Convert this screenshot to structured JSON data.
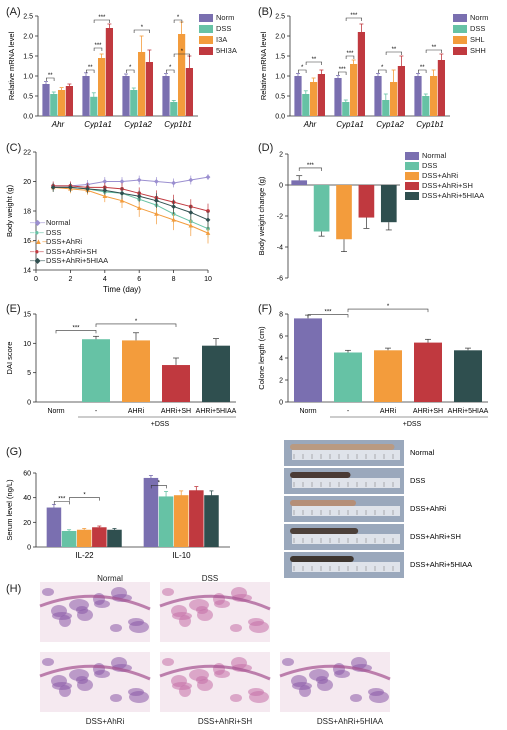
{
  "colors": {
    "norm": "#7a6fb0",
    "dss": "#66c2a5",
    "i3a": "#f39c3c",
    "h5": "#c0393f",
    "dark": "#2f4f4f"
  },
  "panel_labels": {
    "A": "(A)",
    "B": "(B)",
    "C": "(C)",
    "D": "(D)",
    "E": "(E)",
    "F": "(F)",
    "G": "(G)",
    "H": "(H)"
  },
  "chart_data": [
    {
      "id": "A",
      "type": "bar",
      "ylabel": "Relative mRNA level",
      "ylim": [
        0,
        2.5
      ],
      "yticks": [
        "0.0",
        "0.5",
        "1.0",
        "1.5",
        "2.0",
        "2.5"
      ],
      "categories": [
        "Ahr",
        "Cyp1a1",
        "Cyp1a2",
        "Cyp1b1"
      ],
      "series": [
        {
          "name": "Norm",
          "values": [
            0.8,
            1.0,
            1.0,
            1.0
          ],
          "errors": [
            0.06,
            0.08,
            0.05,
            0.06
          ]
        },
        {
          "name": "DSS",
          "values": [
            0.55,
            0.48,
            0.65,
            0.35
          ],
          "errors": [
            0.05,
            0.1,
            0.05,
            0.04
          ]
        },
        {
          "name": "I3A",
          "values": [
            0.65,
            1.45,
            1.6,
            2.05
          ],
          "errors": [
            0.06,
            0.1,
            0.4,
            0.3
          ]
        },
        {
          "name": "5HI3A",
          "values": [
            0.75,
            2.2,
            1.35,
            1.2
          ],
          "errors": [
            0.05,
            0.1,
            0.3,
            0.3
          ]
        }
      ],
      "sig": [
        "**",
        "**",
        "***",
        "***",
        "*",
        "*",
        "*",
        "*",
        "*"
      ]
    },
    {
      "id": "B",
      "type": "bar",
      "ylabel": "Relative mRNA level",
      "ylim": [
        0,
        2.5
      ],
      "yticks": [
        "0.0",
        "0.5",
        "1.0",
        "1.5",
        "2.0",
        "2.5"
      ],
      "categories": [
        "Ahr",
        "Cyp1a1",
        "Cyp1a2",
        "Cyp1b1"
      ],
      "series": [
        {
          "name": "Norm",
          "values": [
            1.0,
            0.95,
            1.0,
            1.0
          ],
          "errors": [
            0.06,
            0.06,
            0.06,
            0.06
          ]
        },
        {
          "name": "DSS",
          "values": [
            0.55,
            0.35,
            0.4,
            0.5
          ],
          "errors": [
            0.08,
            0.05,
            0.15,
            0.05
          ]
        },
        {
          "name": "SHL",
          "values": [
            0.85,
            1.3,
            0.85,
            1.0
          ],
          "errors": [
            0.1,
            0.1,
            0.3,
            0.15
          ]
        },
        {
          "name": "SHH",
          "values": [
            1.05,
            2.1,
            1.25,
            1.4
          ],
          "errors": [
            0.1,
            0.2,
            0.25,
            0.15
          ]
        }
      ],
      "sig": [
        "*",
        "**",
        "***",
        "***",
        "***",
        "*",
        "**",
        "**",
        "**"
      ]
    },
    {
      "id": "C",
      "type": "line",
      "xlabel": "Time (day)",
      "ylabel": "Body weight (g)",
      "xlim": [
        0,
        10
      ],
      "ylim": [
        14,
        22
      ],
      "xticks": [
        "0",
        "2",
        "4",
        "6",
        "8",
        "10"
      ],
      "yticks": [
        "14",
        "16",
        "18",
        "20",
        "22"
      ],
      "x": [
        1,
        2,
        3,
        4,
        5,
        6,
        7,
        8,
        9,
        10
      ],
      "series": [
        {
          "name": "Normal",
          "values": [
            19.7,
            19.7,
            19.8,
            20.0,
            20.0,
            20.1,
            20.0,
            19.9,
            20.1,
            20.3
          ],
          "errors": [
            0.3,
            0.3,
            0.3,
            0.3,
            0.3,
            0.3,
            0.3,
            0.3,
            0.3,
            0.2
          ]
        },
        {
          "name": "DSS",
          "values": [
            19.6,
            19.6,
            19.5,
            19.3,
            19.2,
            18.8,
            18.4,
            17.8,
            17.3,
            16.8
          ],
          "errors": [
            0.3,
            0.3,
            0.3,
            0.3,
            0.4,
            0.4,
            0.5,
            0.6,
            0.6,
            0.6
          ]
        },
        {
          "name": "DSS+AhRi",
          "values": [
            19.6,
            19.5,
            19.4,
            19.0,
            18.7,
            18.2,
            17.8,
            17.4,
            17.0,
            16.5
          ],
          "errors": [
            0.3,
            0.3,
            0.3,
            0.4,
            0.5,
            0.6,
            0.7,
            0.7,
            0.7,
            0.7
          ]
        },
        {
          "name": "DSS+AhRi+SH",
          "values": [
            19.7,
            19.7,
            19.6,
            19.6,
            19.5,
            19.2,
            18.9,
            18.6,
            18.3,
            18.0
          ],
          "errors": [
            0.3,
            0.3,
            0.3,
            0.3,
            0.4,
            0.4,
            0.5,
            0.5,
            0.5,
            0.5
          ]
        },
        {
          "name": "DSS+AhRi+5HIAA",
          "values": [
            19.6,
            19.6,
            19.5,
            19.4,
            19.2,
            19.0,
            18.7,
            18.3,
            17.9,
            17.4
          ],
          "errors": [
            0.3,
            0.3,
            0.3,
            0.3,
            0.4,
            0.4,
            0.5,
            0.5,
            0.5,
            0.6
          ]
        }
      ]
    },
    {
      "id": "D",
      "type": "bar",
      "ylabel": "Body weight change (g)",
      "ylim": [
        -6,
        2
      ],
      "yticks": [
        "-6",
        "-4",
        "-2",
        "0",
        "2"
      ],
      "categories": [
        "Normal",
        "DSS",
        "DSS+AhRi",
        "DSS+AhRi+SH",
        "DSS+AhRi+5HIAA"
      ],
      "series": [
        {
          "name": "value",
          "values": [
            0.3,
            -3.0,
            -3.5,
            -2.1,
            -2.4
          ],
          "errors": [
            0.3,
            0.3,
            0.8,
            0.7,
            0.5
          ]
        }
      ],
      "sig": [
        "***"
      ]
    },
    {
      "id": "E",
      "type": "bar",
      "ylabel": "DAI score",
      "ylim": [
        0,
        15
      ],
      "yticks": [
        "0",
        "5",
        "10",
        "15"
      ],
      "categories": [
        "Norm",
        "-",
        "AHRi",
        "AHRi+SH",
        "AHRi+5HIAA"
      ],
      "group_label": "+DSS",
      "series": [
        {
          "name": "value",
          "values": [
            0,
            10.7,
            10.5,
            6.3,
            9.6
          ],
          "errors": [
            0,
            0.5,
            1.3,
            1.2,
            1.2
          ]
        }
      ],
      "sig": [
        "***",
        "*"
      ]
    },
    {
      "id": "F",
      "type": "bar",
      "ylabel": "Colone length (cm)",
      "ylim": [
        0,
        8
      ],
      "yticks": [
        "0",
        "2",
        "4",
        "6",
        "8"
      ],
      "categories": [
        "Norm",
        "-",
        "AHRi",
        "AHRi+SH",
        "AHRi+5HIAA"
      ],
      "group_label": "+DSS",
      "series": [
        {
          "name": "value",
          "values": [
            7.6,
            4.5,
            4.7,
            5.4,
            4.7
          ],
          "errors": [
            0.3,
            0.2,
            0.2,
            0.3,
            0.2
          ]
        }
      ],
      "sig": [
        "***",
        "*"
      ]
    },
    {
      "id": "G",
      "type": "bar",
      "ylabel": "Serum level (ng/L)",
      "ylim": [
        0,
        60
      ],
      "yticks": [
        "0",
        "20",
        "40",
        "60"
      ],
      "categories": [
        "IL-22",
        "IL-10"
      ],
      "series": [
        {
          "name": "Normal",
          "values": [
            32,
            56
          ],
          "errors": [
            2.5,
            2
          ]
        },
        {
          "name": "DSS",
          "values": [
            13,
            41
          ],
          "errors": [
            1,
            4
          ]
        },
        {
          "name": "DSS+AhRi",
          "values": [
            14,
            42
          ],
          "errors": [
            1,
            3.5
          ]
        },
        {
          "name": "DSS+AhRi+SH",
          "values": [
            16,
            46
          ],
          "errors": [
            1,
            3
          ]
        },
        {
          "name": "DSS+AhRi+5HIAA",
          "values": [
            14,
            42
          ],
          "errors": [
            1,
            3.5
          ]
        }
      ],
      "sig": [
        "***",
        "*",
        "*"
      ]
    }
  ],
  "legend_A": [
    "Norm",
    "DSS",
    "I3A",
    "5HI3A"
  ],
  "legend_B": [
    "Norm",
    "DSS",
    "SHL",
    "SHH"
  ],
  "legend_C": [
    "Normal",
    "DSS",
    "DSS+AhRi",
    "DSS+AhRi+SH",
    "DSS+AhRi+5HIAA"
  ],
  "legend_D": [
    "Normal",
    "DSS",
    "DSS+AhRi",
    "DSS+AhRi+SH",
    "DSS+AhRi+5HIAA"
  ],
  "photos": {
    "labels": [
      "Normal",
      "DSS",
      "DSS+AhRi",
      "DSS+AhRi+SH",
      "DSS+AhRi+5HIAA"
    ]
  },
  "histology": {
    "labels": [
      "Normal",
      "DSS",
      "DSS+AhRi",
      "DSS+AhRi+SH",
      "DSS+AhRi+5HIAA"
    ]
  }
}
